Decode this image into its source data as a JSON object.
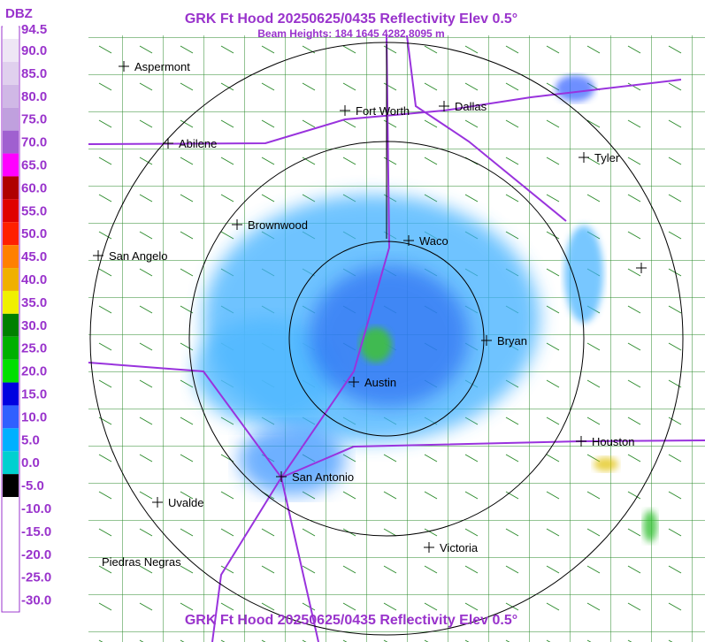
{
  "header": {
    "title": "GRK Ft Hood 20250625/0435 Reflectivity Elev 0.5°",
    "subtitle": "Beam Heights: 184 1645 4282 8095 m"
  },
  "footer": {
    "title": "GRK Ft Hood 20250625/0435 Reflectivity Elev 0.5°"
  },
  "legend": {
    "unit": "DBZ",
    "entries": [
      {
        "label": "94.5",
        "color": "#ffffff"
      },
      {
        "label": "90.0",
        "color": "#eee6f5"
      },
      {
        "label": "85.0",
        "color": "#e0d0ee"
      },
      {
        "label": "80.0",
        "color": "#d0b8e6"
      },
      {
        "label": "75.0",
        "color": "#c0a0de"
      },
      {
        "label": "70.0",
        "color": "#a060d0"
      },
      {
        "label": "65.0",
        "color": "#ff00ff"
      },
      {
        "label": "60.0",
        "color": "#b00000"
      },
      {
        "label": "55.0",
        "color": "#e00000"
      },
      {
        "label": "50.0",
        "color": "#ff2000"
      },
      {
        "label": "45.0",
        "color": "#ff8000"
      },
      {
        "label": "40.0",
        "color": "#f0b000"
      },
      {
        "label": "35.0",
        "color": "#f0f000"
      },
      {
        "label": "30.0",
        "color": "#008000"
      },
      {
        "label": "25.0",
        "color": "#00b000"
      },
      {
        "label": "20.0",
        "color": "#00e000"
      },
      {
        "label": "15.0",
        "color": "#0000e0"
      },
      {
        "label": "10.0",
        "color": "#3060ff"
      },
      {
        "label": "5.0",
        "color": "#00b0ff"
      },
      {
        "label": "0.0",
        "color": "#00d0d0"
      },
      {
        "label": "-5.0",
        "color": "#000000"
      },
      {
        "label": "-10.0",
        "color": "#ffffff"
      },
      {
        "label": "-15.0",
        "color": "#ffffff"
      },
      {
        "label": "-20.0",
        "color": "#ffffff"
      },
      {
        "label": "-25.0",
        "color": "#ffffff"
      },
      {
        "label": "-30.0",
        "color": "#ffffff"
      }
    ]
  },
  "cities": [
    "Aspermont",
    "Fort Worth",
    "Dallas",
    "Abilene",
    "Tyler",
    "Brownwood",
    "Waco",
    "San Angelo",
    "Bryan",
    "Austin",
    "Houston",
    "San Antonio",
    "Uvalde",
    "Victoria",
    "Piedras Negras"
  ]
}
